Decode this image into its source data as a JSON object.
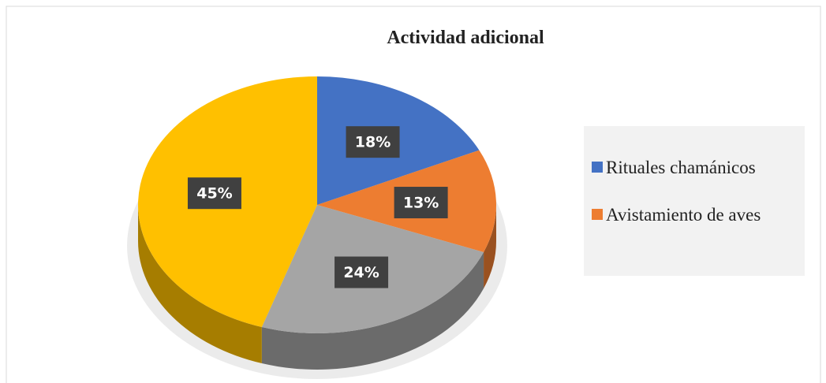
{
  "chart_data": {
    "type": "pie",
    "title": "Actividad adicional",
    "categories": [
      "Rituales chamánicos",
      "Avistamiento de aves",
      null,
      null
    ],
    "values": [
      18,
      13,
      24,
      45
    ],
    "value_labels": [
      "18%",
      "13%",
      "24%",
      "45%"
    ],
    "colors": [
      "#4472c4",
      "#ed7d31",
      "#a5a5a5",
      "#ffc000"
    ],
    "legend": "right"
  }
}
